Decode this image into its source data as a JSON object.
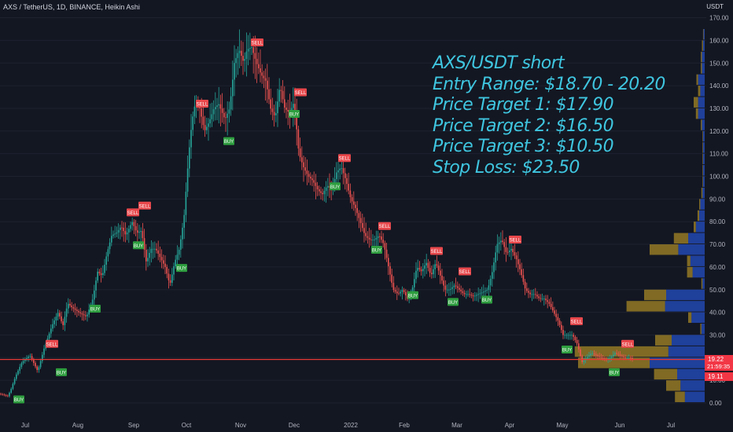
{
  "header": {
    "symbol_line": "AXS / TetherUS, 1D, BINANCE, Heikin Ashi",
    "currency": "USDT"
  },
  "annotation": {
    "lines": [
      "AXS/USDT short",
      "Entry Range: $18.70 - 20.20",
      "Price Target 1: $17.90",
      "Price Target 2: $16.50",
      "Price Target 3: $10.50",
      "Stop Loss: $23.50"
    ]
  },
  "price_tags": {
    "last": "19.22",
    "countdown": "21:59:35",
    "low": "19.11"
  },
  "colors": {
    "up": "#26a69a",
    "down": "#ef5350",
    "line": "#e53935",
    "text": "#3fc6e0",
    "vol_up": "#2962ff",
    "vol_down": "#c9a227"
  },
  "chart_data": {
    "type": "candlestick",
    "series_style": "Heikin Ashi",
    "ylim": [
      -5,
      170
    ],
    "y_ticks": [
      0,
      10,
      20,
      30,
      40,
      50,
      60,
      70,
      80,
      90,
      100,
      110,
      120,
      130,
      140,
      150,
      160,
      170
    ],
    "y_tick_labels": [
      "0.00",
      "10.00",
      "20.00",
      "30.00",
      "40.00",
      "50.00",
      "60.00",
      "70.00",
      "80.00",
      "90.00",
      "100.00",
      "110.00",
      "120.00",
      "130.00",
      "140.00",
      "150.00",
      "160.00",
      "170.00"
    ],
    "x_tick_labels": [
      "Jul",
      "Aug",
      "Sep",
      "Oct",
      "Nov",
      "Dec",
      "2022",
      "Feb",
      "Mar",
      "Apr",
      "May",
      "Jun",
      "Jul"
    ],
    "horizontal_line": 19.2,
    "price_path": [
      [
        0,
        4
      ],
      [
        10,
        3
      ],
      [
        14,
        6
      ],
      [
        20,
        12
      ],
      [
        28,
        18
      ],
      [
        38,
        21
      ],
      [
        48,
        14
      ],
      [
        56,
        24
      ],
      [
        66,
        34
      ],
      [
        74,
        40
      ],
      [
        80,
        34
      ],
      [
        86,
        44
      ],
      [
        92,
        42
      ],
      [
        100,
        40
      ],
      [
        110,
        38
      ],
      [
        118,
        46
      ],
      [
        124,
        58
      ],
      [
        130,
        56
      ],
      [
        136,
        66
      ],
      [
        142,
        74
      ],
      [
        148,
        75
      ],
      [
        154,
        78
      ],
      [
        160,
        74
      ],
      [
        168,
        80
      ],
      [
        174,
        75
      ],
      [
        180,
        76
      ],
      [
        186,
        62
      ],
      [
        192,
        68
      ],
      [
        198,
        68
      ],
      [
        204,
        64
      ],
      [
        210,
        60
      ],
      [
        216,
        52
      ],
      [
        222,
        62
      ],
      [
        228,
        68
      ],
      [
        234,
        82
      ],
      [
        240,
        110
      ],
      [
        244,
        124
      ],
      [
        248,
        132
      ],
      [
        254,
        130
      ],
      [
        260,
        120
      ],
      [
        266,
        124
      ],
      [
        272,
        130
      ],
      [
        278,
        132
      ],
      [
        286,
        125
      ],
      [
        292,
        130
      ],
      [
        298,
        150
      ],
      [
        304,
        156
      ],
      [
        310,
        150
      ],
      [
        314,
        156
      ],
      [
        320,
        157
      ],
      [
        326,
        150
      ],
      [
        332,
        145
      ],
      [
        338,
        142
      ],
      [
        344,
        130
      ],
      [
        350,
        126
      ],
      [
        356,
        140
      ],
      [
        362,
        130
      ],
      [
        368,
        128
      ],
      [
        374,
        133
      ],
      [
        380,
        110
      ],
      [
        386,
        104
      ],
      [
        392,
        100
      ],
      [
        398,
        98
      ],
      [
        404,
        94
      ],
      [
        410,
        92
      ],
      [
        416,
        96
      ],
      [
        422,
        94
      ],
      [
        428,
        102
      ],
      [
        434,
        104
      ],
      [
        440,
        98
      ],
      [
        446,
        90
      ],
      [
        452,
        86
      ],
      [
        458,
        80
      ],
      [
        464,
        74
      ],
      [
        470,
        72
      ],
      [
        476,
        72
      ],
      [
        482,
        74
      ],
      [
        488,
        70
      ],
      [
        494,
        60
      ],
      [
        500,
        50
      ],
      [
        506,
        48
      ],
      [
        512,
        50
      ],
      [
        518,
        46
      ],
      [
        524,
        50
      ],
      [
        530,
        60
      ],
      [
        536,
        58
      ],
      [
        542,
        62
      ],
      [
        548,
        56
      ],
      [
        554,
        62
      ],
      [
        560,
        56
      ],
      [
        566,
        50
      ],
      [
        572,
        50
      ],
      [
        578,
        52
      ],
      [
        584,
        50
      ],
      [
        590,
        48
      ],
      [
        596,
        48
      ],
      [
        602,
        47
      ],
      [
        608,
        48
      ],
      [
        614,
        49
      ],
      [
        620,
        50
      ],
      [
        626,
        58
      ],
      [
        632,
        70
      ],
      [
        638,
        72
      ],
      [
        644,
        66
      ],
      [
        650,
        68
      ],
      [
        656,
        64
      ],
      [
        662,
        58
      ],
      [
        668,
        50
      ],
      [
        674,
        48
      ],
      [
        680,
        48
      ],
      [
        686,
        46
      ],
      [
        692,
        46
      ],
      [
        698,
        44
      ],
      [
        704,
        40
      ],
      [
        710,
        36
      ],
      [
        716,
        30
      ],
      [
        722,
        30
      ],
      [
        728,
        30
      ],
      [
        734,
        26
      ],
      [
        740,
        18
      ],
      [
        746,
        20
      ],
      [
        752,
        22
      ],
      [
        758,
        21
      ],
      [
        764,
        20
      ],
      [
        770,
        19
      ],
      [
        776,
        20
      ],
      [
        782,
        22
      ],
      [
        788,
        21
      ],
      [
        794,
        20
      ],
      [
        800,
        20
      ],
      [
        806,
        19
      ]
    ],
    "signals": [
      {
        "label": "BUY",
        "x": 24,
        "value": 4
      },
      {
        "label": "SELL",
        "x": 66,
        "value": 24
      },
      {
        "label": "BUY",
        "x": 78,
        "value": 16
      },
      {
        "label": "BUY",
        "x": 121,
        "value": 44
      },
      {
        "label": "SELL",
        "x": 169,
        "value": 82
      },
      {
        "label": "SELL",
        "x": 184,
        "value": 85
      },
      {
        "label": "BUY",
        "x": 176,
        "value": 72
      },
      {
        "label": "BUY",
        "x": 231,
        "value": 62
      },
      {
        "label": "SELL",
        "x": 257,
        "value": 130
      },
      {
        "label": "BUY",
        "x": 291,
        "value": 118
      },
      {
        "label": "SELL",
        "x": 327,
        "value": 157
      },
      {
        "label": "SELL",
        "x": 382,
        "value": 135
      },
      {
        "label": "BUY",
        "x": 374,
        "value": 130
      },
      {
        "label": "SELL",
        "x": 438,
        "value": 106
      },
      {
        "label": "BUY",
        "x": 426,
        "value": 98
      },
      {
        "label": "SELL",
        "x": 489,
        "value": 76
      },
      {
        "label": "BUY",
        "x": 479,
        "value": 70
      },
      {
        "label": "BUY",
        "x": 525,
        "value": 50
      },
      {
        "label": "SELL",
        "x": 555,
        "value": 65
      },
      {
        "label": "SELL",
        "x": 591,
        "value": 56
      },
      {
        "label": "BUY",
        "x": 576,
        "value": 47
      },
      {
        "label": "BUY",
        "x": 619,
        "value": 48
      },
      {
        "label": "SELL",
        "x": 655,
        "value": 70
      },
      {
        "label": "SELL",
        "x": 733,
        "value": 34
      },
      {
        "label": "BUY",
        "x": 721,
        "value": 26
      },
      {
        "label": "SELL",
        "x": 798,
        "value": 24
      },
      {
        "label": "BUY",
        "x": 781,
        "value": 16
      }
    ],
    "volume_profile": [
      {
        "low": 0,
        "high": 5,
        "up": 36,
        "down": 18
      },
      {
        "low": 5,
        "high": 10,
        "up": 44,
        "down": 26
      },
      {
        "low": 10,
        "high": 15,
        "up": 50,
        "down": 42
      },
      {
        "low": 15,
        "high": 20,
        "up": 100,
        "down": 130
      },
      {
        "low": 20,
        "high": 25,
        "up": 66,
        "down": 170
      },
      {
        "low": 25,
        "high": 30,
        "up": 60,
        "down": 30
      },
      {
        "low": 30,
        "high": 35,
        "up": 6,
        "down": 2
      },
      {
        "low": 35,
        "high": 40,
        "up": 24,
        "down": 6
      },
      {
        "low": 40,
        "high": 45,
        "up": 72,
        "down": 70
      },
      {
        "low": 45,
        "high": 50,
        "up": 70,
        "down": 40
      },
      {
        "low": 50,
        "high": 55,
        "up": 4,
        "down": 2
      },
      {
        "low": 55,
        "high": 60,
        "up": 22,
        "down": 10
      },
      {
        "low": 60,
        "high": 65,
        "up": 26,
        "down": 6
      },
      {
        "low": 65,
        "high": 70,
        "up": 48,
        "down": 52
      },
      {
        "low": 70,
        "high": 75,
        "up": 30,
        "down": 26
      },
      {
        "low": 75,
        "high": 80,
        "up": 16,
        "down": 4
      },
      {
        "low": 80,
        "high": 85,
        "up": 10,
        "down": 3
      },
      {
        "low": 85,
        "high": 90,
        "up": 8,
        "down": 2
      },
      {
        "low": 90,
        "high": 95,
        "up": 4,
        "down": 2
      },
      {
        "low": 95,
        "high": 100,
        "up": 3,
        "down": 1
      },
      {
        "low": 100,
        "high": 105,
        "up": 3,
        "down": 1
      },
      {
        "low": 105,
        "high": 110,
        "up": 3,
        "down": 1
      },
      {
        "low": 110,
        "high": 115,
        "up": 3,
        "down": 1
      },
      {
        "low": 115,
        "high": 120,
        "up": 3,
        "down": 1
      },
      {
        "low": 120,
        "high": 125,
        "up": 5,
        "down": 2
      },
      {
        "low": 125,
        "high": 130,
        "up": 12,
        "down": 4
      },
      {
        "low": 130,
        "high": 135,
        "up": 12,
        "down": 8
      },
      {
        "low": 135,
        "high": 140,
        "up": 8,
        "down": 4
      },
      {
        "low": 140,
        "high": 145,
        "up": 12,
        "down": 3
      },
      {
        "low": 145,
        "high": 150,
        "up": 5,
        "down": 2
      },
      {
        "low": 150,
        "high": 155,
        "up": 5,
        "down": 2
      },
      {
        "low": 155,
        "high": 160,
        "up": 3,
        "down": 2
      },
      {
        "low": 160,
        "high": 165,
        "up": 2,
        "down": 1
      }
    ]
  }
}
